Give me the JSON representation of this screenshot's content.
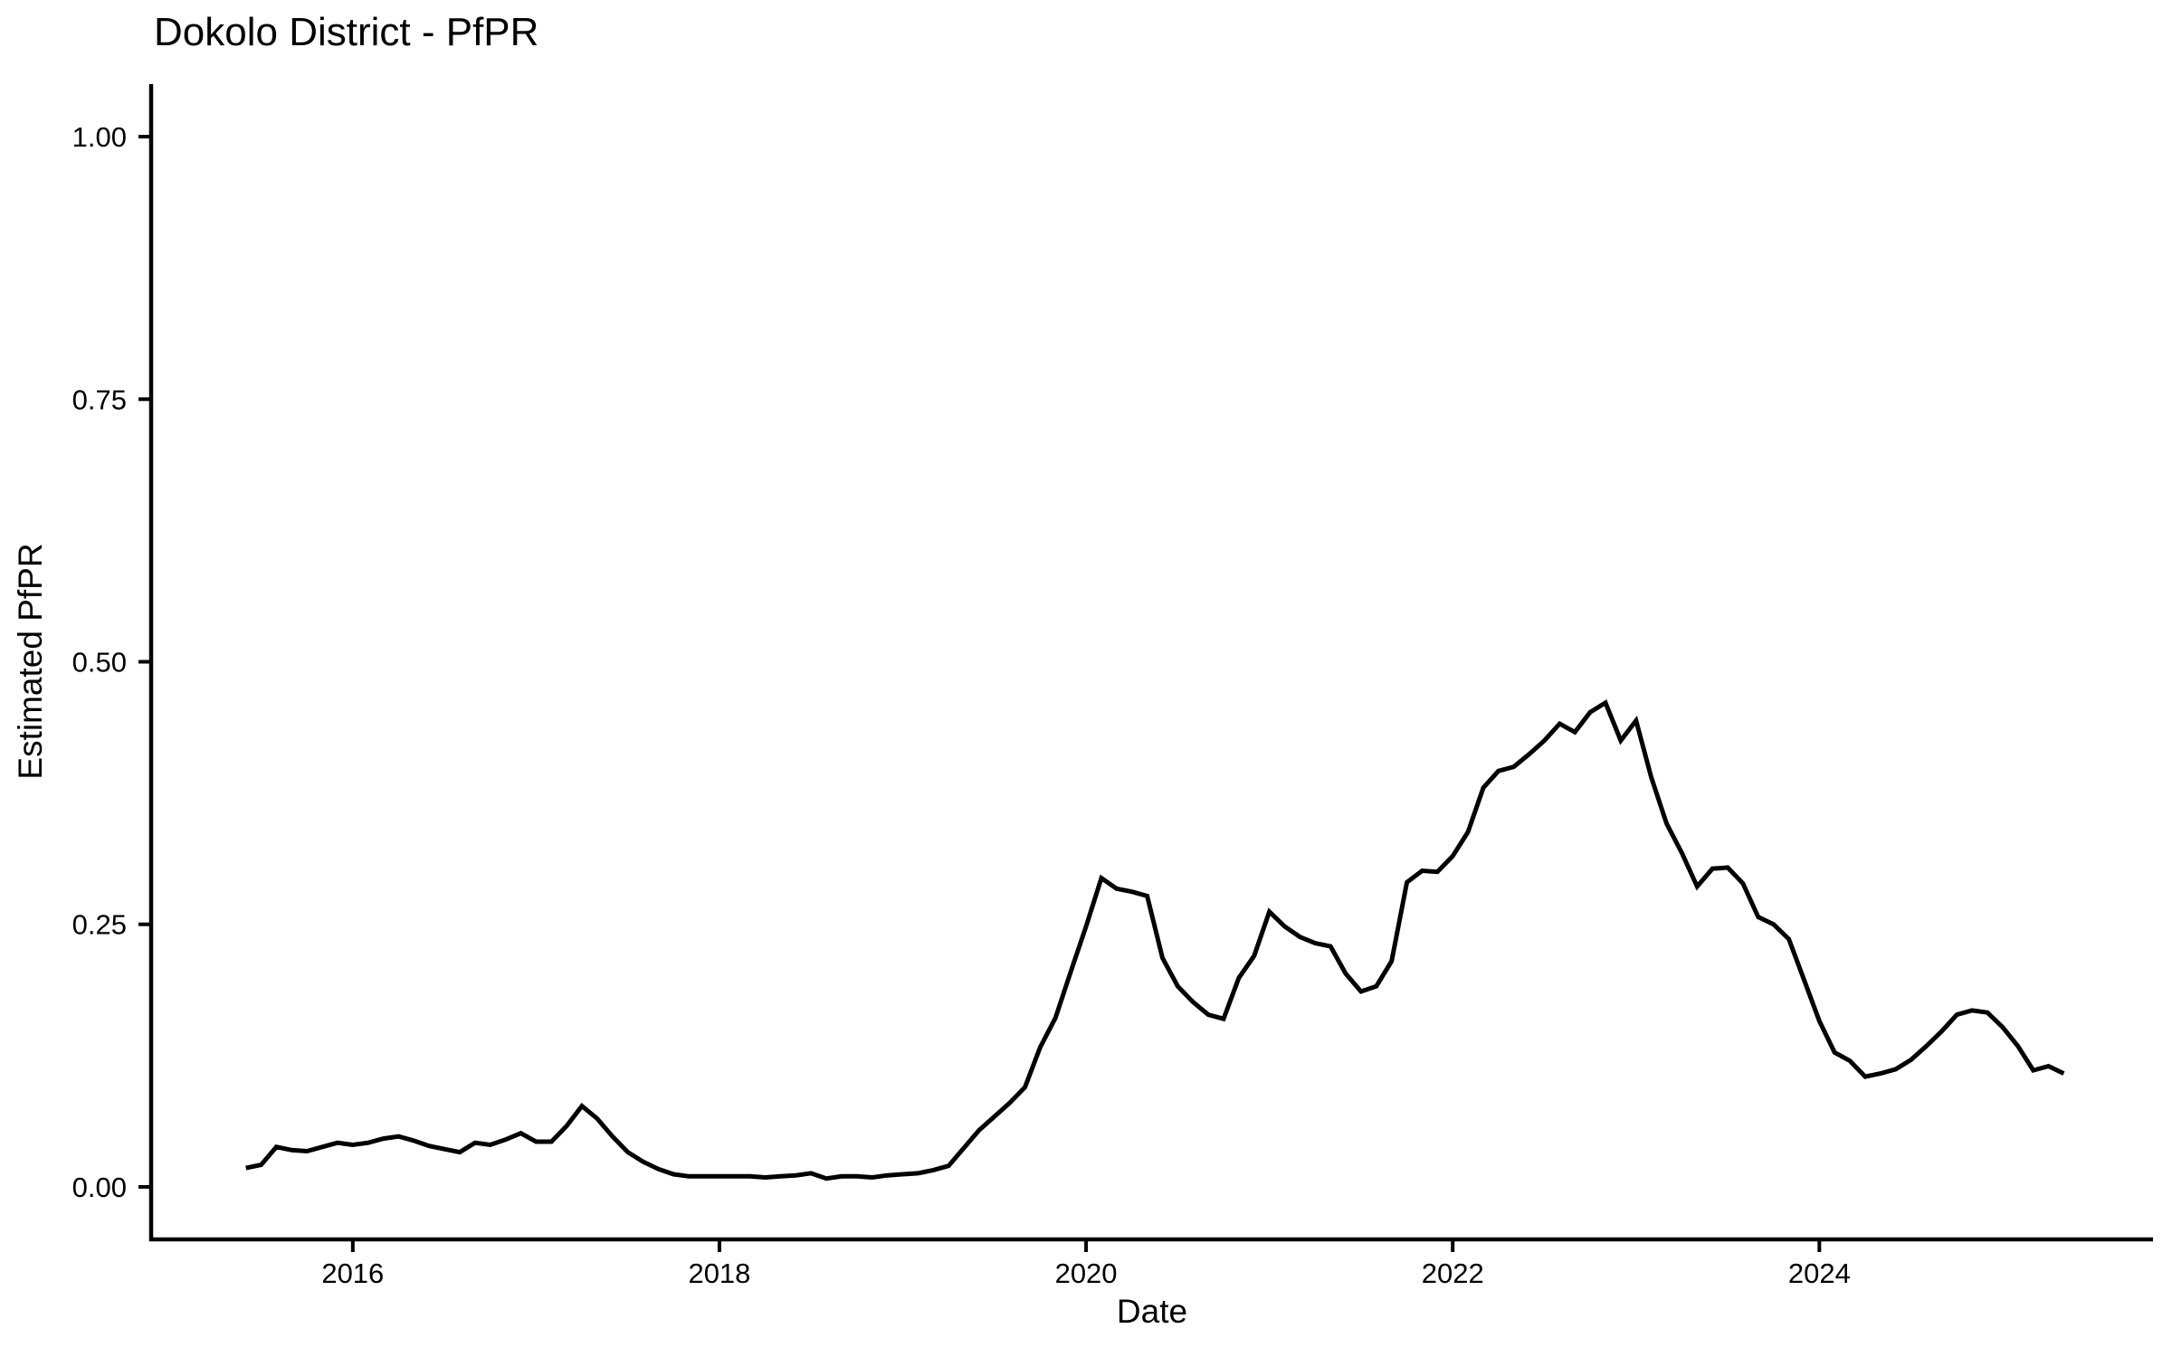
{
  "title": "Dokolo District - PfPR",
  "chart_data": {
    "type": "line",
    "title": "Dokolo District - PfPR",
    "xlabel": "Date",
    "ylabel": "Estimated PfPR",
    "grid": false,
    "legend_position": "none",
    "xlim_years": [
      2014.9,
      2025.82
    ],
    "ylim": [
      -0.05,
      1.05
    ],
    "x_ticks": [
      {
        "year": 2016,
        "label": "2016"
      },
      {
        "year": 2018,
        "label": "2018"
      },
      {
        "year": 2020,
        "label": "2020"
      },
      {
        "year": 2022,
        "label": "2022"
      },
      {
        "year": 2024,
        "label": "2024"
      }
    ],
    "y_ticks": [
      {
        "value": 0.0,
        "label": "0.00"
      },
      {
        "value": 0.25,
        "label": "0.25"
      },
      {
        "value": 0.5,
        "label": "0.50"
      },
      {
        "value": 0.75,
        "label": "0.75"
      },
      {
        "value": 1.0,
        "label": "1.00"
      }
    ],
    "theme": {
      "background": "#FFFFFF",
      "line_color": "#000000",
      "axis_color": "#000000",
      "text_color": "#000000"
    },
    "series": [
      {
        "name": "Estimated PfPR",
        "frequency": "monthly",
        "start_year": 2015,
        "start_month": 6,
        "end": "2025-05",
        "values": [
          0.018,
          0.021,
          0.038,
          0.035,
          0.034,
          0.038,
          0.042,
          0.04,
          0.042,
          0.046,
          0.048,
          0.044,
          0.039,
          0.036,
          0.033,
          0.042,
          0.04,
          0.045,
          0.051,
          0.043,
          0.043,
          0.058,
          0.077,
          0.065,
          0.048,
          0.033,
          0.024,
          0.017,
          0.012,
          0.01,
          0.01,
          0.01,
          0.01,
          0.01,
          0.009,
          0.01,
          0.011,
          0.013,
          0.008,
          0.01,
          0.01,
          0.009,
          0.011,
          0.012,
          0.013,
          0.016,
          0.02,
          0.037,
          0.054,
          0.067,
          0.08,
          0.095,
          0.133,
          0.161,
          0.205,
          0.248,
          0.294,
          0.284,
          0.281,
          0.277,
          0.218,
          0.191,
          0.176,
          0.164,
          0.16,
          0.199,
          0.22,
          0.262,
          0.248,
          0.238,
          0.232,
          0.229,
          0.203,
          0.186,
          0.191,
          0.215,
          0.29,
          0.301,
          0.3,
          0.315,
          0.338,
          0.38,
          0.396,
          0.4,
          0.412,
          0.425,
          0.441,
          0.433,
          0.452,
          0.461,
          0.425,
          0.444,
          0.39,
          0.346,
          0.318,
          0.286,
          0.303,
          0.304,
          0.289,
          0.257,
          0.25,
          0.236,
          0.197,
          0.158,
          0.128,
          0.12,
          0.105,
          0.108,
          0.112,
          0.121,
          0.134,
          0.148,
          0.164,
          0.168,
          0.166,
          0.152,
          0.134,
          0.111,
          0.115,
          0.108
        ]
      }
    ]
  }
}
